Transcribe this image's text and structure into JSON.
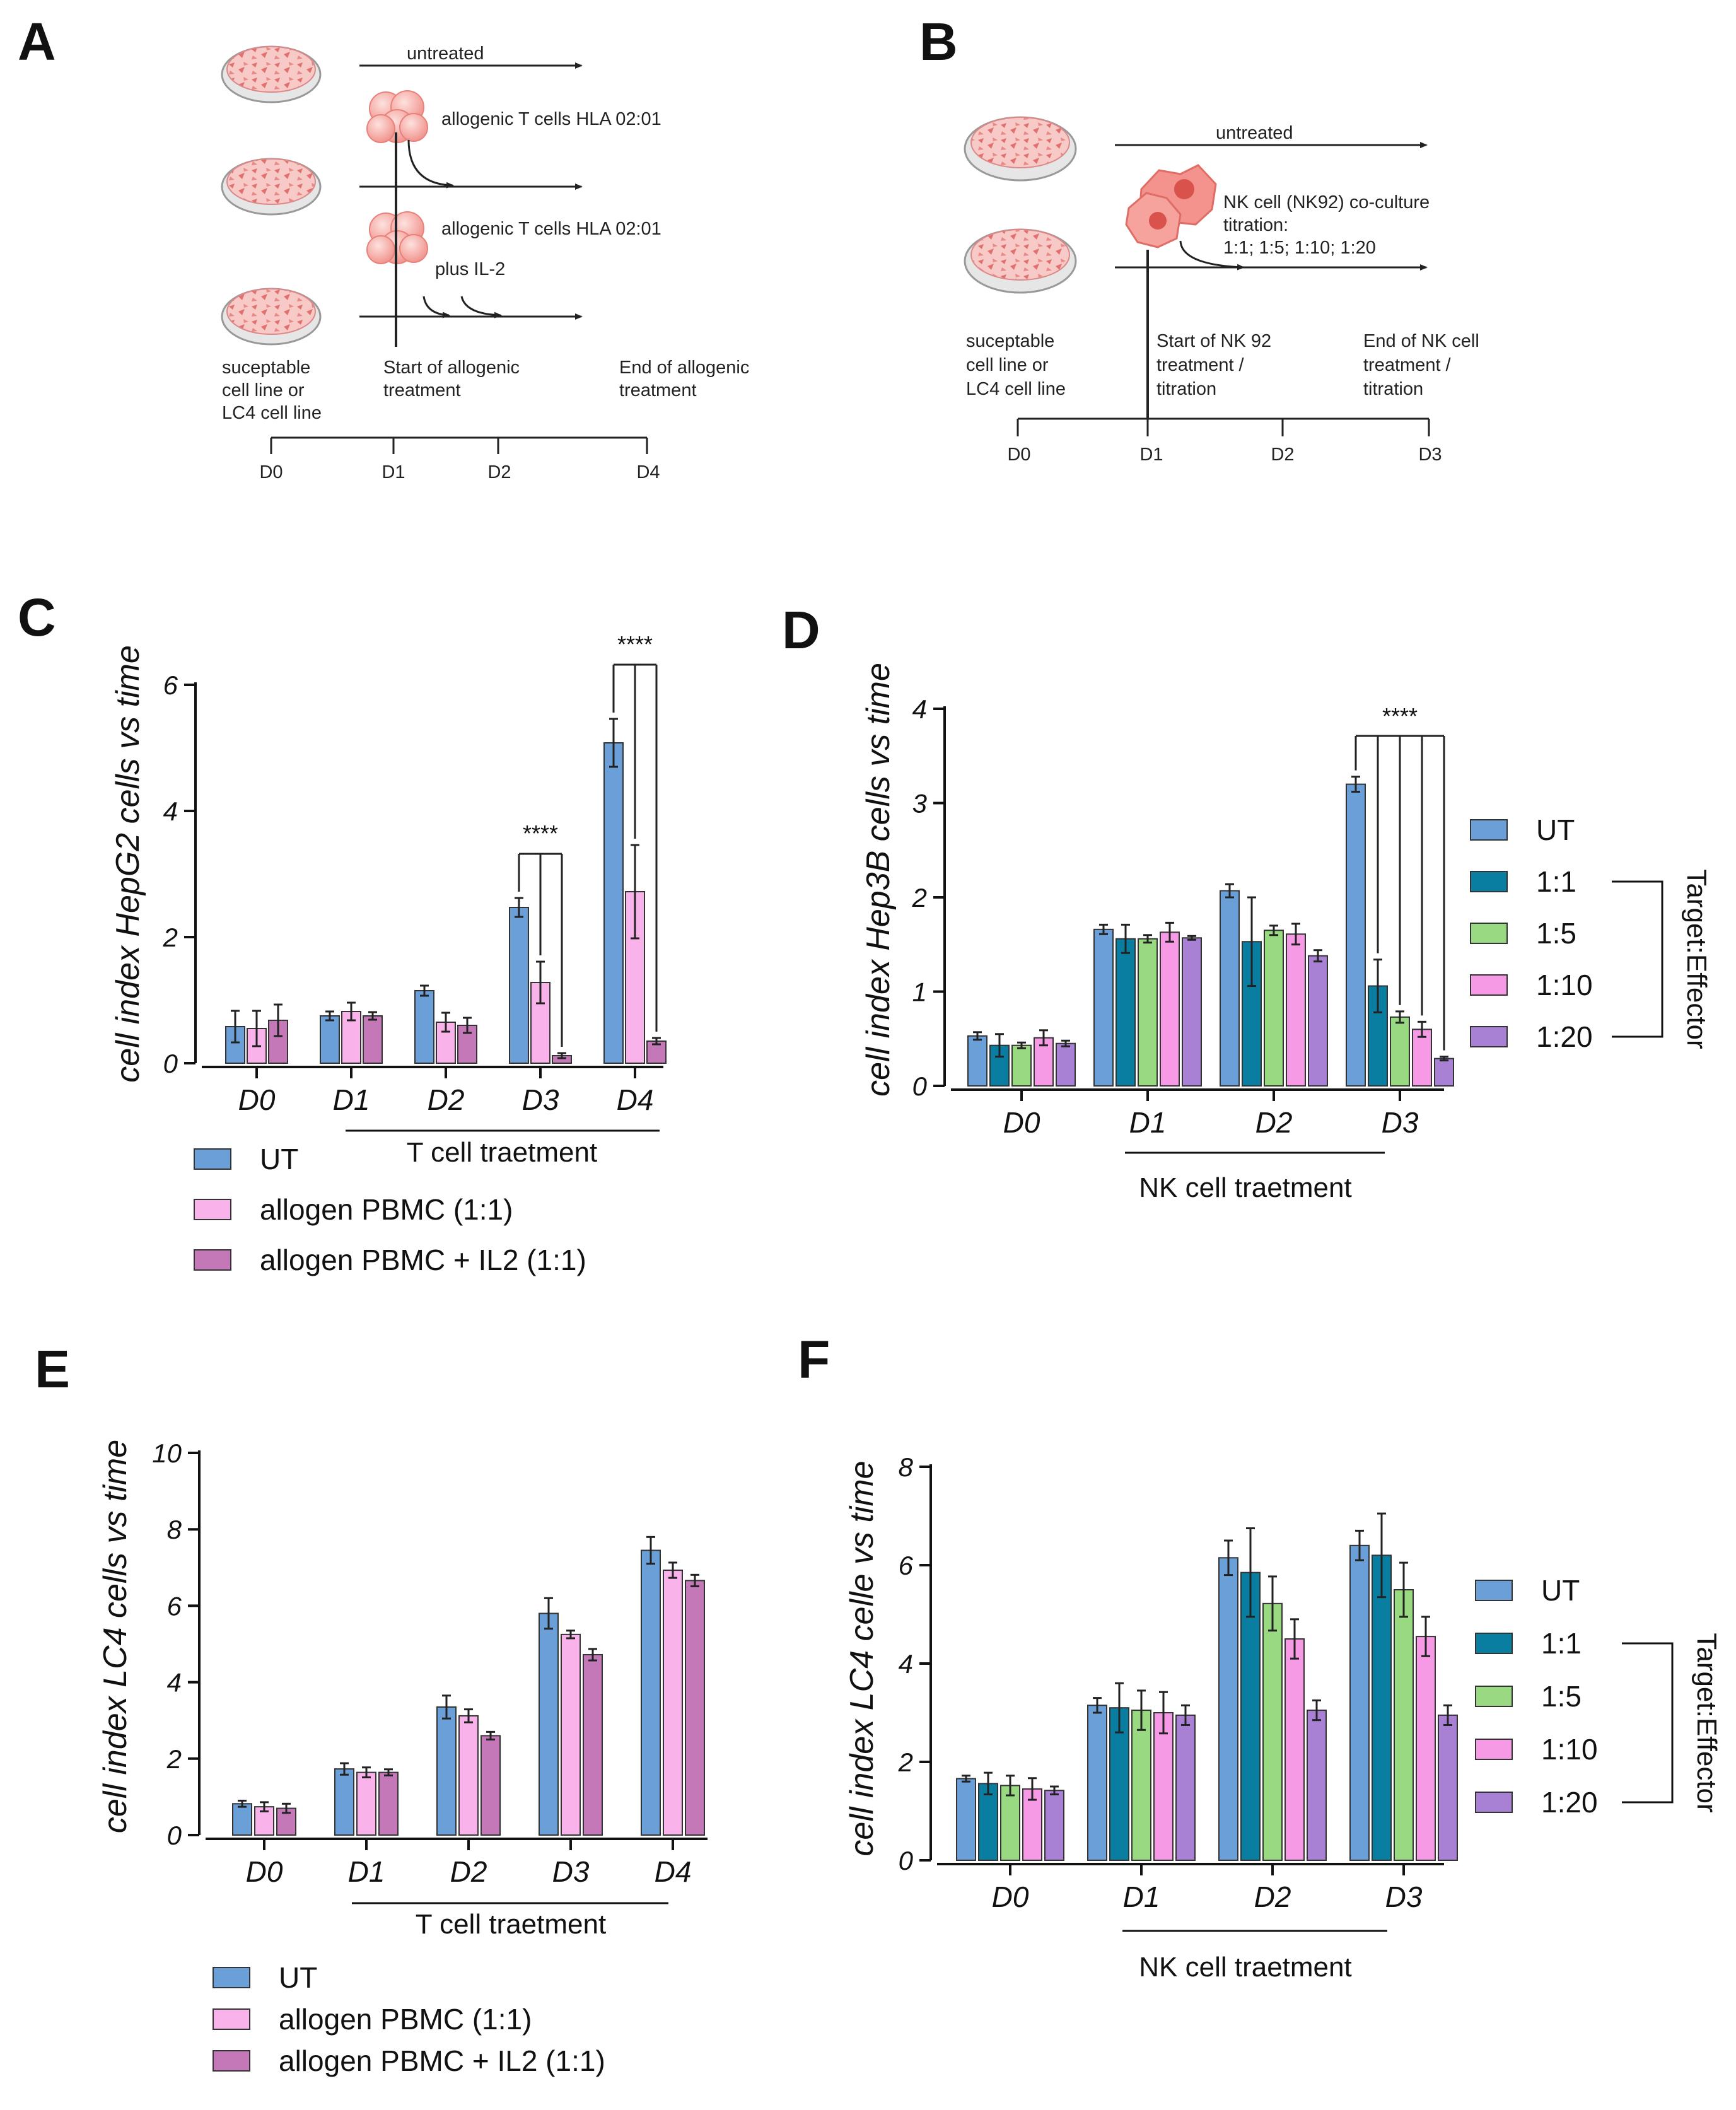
{
  "panels": {
    "A": "A",
    "B": "B",
    "C": "C",
    "D": "D",
    "E": "E",
    "F": "F"
  },
  "schemA": {
    "untreated": "untreated",
    "tcells1": "allogenic T cells HLA 02:01",
    "tcells2": "allogenic T cells HLA 02:01",
    "il2": "plus IL-2",
    "cell_line": [
      "suceptable",
      "cell line or",
      "LC4 cell line"
    ],
    "start": [
      "Start of allogenic",
      "treatment"
    ],
    "end": [
      "End of allogenic",
      "treatment"
    ],
    "days": [
      "D0",
      "D1",
      "D2",
      "D4"
    ]
  },
  "schemB": {
    "untreated": "untreated",
    "nk": [
      "NK cell (NK92) co-culture",
      "titration:",
      "1:1; 1:5; 1:10; 1:20"
    ],
    "cell_line": [
      "suceptable",
      "cell line or",
      "LC4 cell line"
    ],
    "start": [
      "Start of NK 92",
      "treatment /",
      "titration"
    ],
    "end": [
      "End of NK cell",
      "treatment /",
      "titration"
    ],
    "days": [
      "D0",
      "D1",
      "D2",
      "D3"
    ]
  },
  "colors": {
    "UT": "#6a9fd8",
    "1:1": "#0a7ea0",
    "1:5": "#99d982",
    "1:10": "#f79ae6",
    "1:20": "#a880d4",
    "PBMC": "#f9b3ea",
    "PBMC_IL2": "#c478b7"
  },
  "chart_data": [
    {
      "panel": "C",
      "type": "bar",
      "ylabel": "cell index HepG2 cells vs time",
      "ylim": [
        0,
        6
      ],
      "yticks": [
        "0",
        "2",
        "4",
        "6"
      ],
      "categories": [
        "D0",
        "D1",
        "D2",
        "D3",
        "D4"
      ],
      "treatment_label": "T cell traetment",
      "significance": "****",
      "series": [
        {
          "name": "UT",
          "values": [
            0.58,
            0.75,
            1.15,
            2.47,
            5.08
          ],
          "errors": [
            0.25,
            0.07,
            0.08,
            0.15,
            0.38
          ]
        },
        {
          "name": "allogen PBMC (1:1)",
          "values": [
            0.55,
            0.82,
            0.65,
            1.28,
            2.72
          ],
          "errors": [
            0.28,
            0.14,
            0.15,
            0.33,
            0.74
          ]
        },
        {
          "name": "allogen PBMC + IL2 (1:1)",
          "values": [
            0.68,
            0.75,
            0.6,
            0.12,
            0.35
          ],
          "errors": [
            0.25,
            0.06,
            0.12,
            0.04,
            0.05
          ]
        }
      ]
    },
    {
      "panel": "D",
      "type": "bar",
      "ylabel": "cell index Hep3B cells vs time",
      "ylim": [
        0,
        4
      ],
      "yticks": [
        "0",
        "1",
        "2",
        "3",
        "4"
      ],
      "categories": [
        "D0",
        "D1",
        "D2",
        "D3"
      ],
      "treatment_label": "NK cell traetment",
      "significance": "****",
      "legend_group": "Target:Effector",
      "series": [
        {
          "name": "UT",
          "values": [
            0.53,
            1.66,
            2.07,
            3.2
          ],
          "errors": [
            0.04,
            0.05,
            0.07,
            0.08
          ]
        },
        {
          "name": "1:1",
          "values": [
            0.43,
            1.56,
            1.53,
            1.06
          ],
          "errors": [
            0.12,
            0.15,
            0.47,
            0.28
          ]
        },
        {
          "name": "1:5",
          "values": [
            0.43,
            1.56,
            1.65,
            0.73
          ],
          "errors": [
            0.03,
            0.04,
            0.05,
            0.06
          ]
        },
        {
          "name": "1:10",
          "values": [
            0.51,
            1.63,
            1.61,
            0.6
          ],
          "errors": [
            0.08,
            0.1,
            0.11,
            0.08
          ]
        },
        {
          "name": "1:20",
          "values": [
            0.45,
            1.57,
            1.38,
            0.29
          ],
          "errors": [
            0.03,
            0.02,
            0.06,
            0.02
          ]
        }
      ]
    },
    {
      "panel": "E",
      "type": "bar",
      "ylabel": "cell index LC4 cells vs time",
      "ylim": [
        0,
        10
      ],
      "yticks": [
        "0",
        "2",
        "4",
        "6",
        "8",
        "10"
      ],
      "categories": [
        "D0",
        "D1",
        "D2",
        "D3",
        "D4"
      ],
      "treatment_label": "T cell traetment",
      "series": [
        {
          "name": "UT",
          "values": [
            0.82,
            1.73,
            3.35,
            5.8,
            7.45
          ],
          "errors": [
            0.08,
            0.15,
            0.3,
            0.4,
            0.35
          ]
        },
        {
          "name": "allogen PBMC (1:1)",
          "values": [
            0.74,
            1.64,
            3.12,
            5.25,
            6.93
          ],
          "errors": [
            0.12,
            0.13,
            0.17,
            0.1,
            0.2
          ]
        },
        {
          "name": "allogen PBMC + IL2 (1:1)",
          "values": [
            0.7,
            1.64,
            2.6,
            4.72,
            6.66
          ],
          "errors": [
            0.12,
            0.08,
            0.1,
            0.15,
            0.15
          ]
        }
      ]
    },
    {
      "panel": "F",
      "type": "bar",
      "ylabel": "cell index LC4 celle vs time",
      "ylim": [
        0,
        8
      ],
      "yticks": [
        "0",
        "2",
        "4",
        "6",
        "8"
      ],
      "categories": [
        "D0",
        "D1",
        "D2",
        "D3"
      ],
      "treatment_label": "NK cell traetment",
      "legend_group": "Target:Effector",
      "series": [
        {
          "name": "UT",
          "values": [
            1.66,
            3.15,
            6.15,
            6.4
          ],
          "errors": [
            0.06,
            0.15,
            0.35,
            0.3
          ]
        },
        {
          "name": "1:1",
          "values": [
            1.56,
            3.1,
            5.85,
            6.2
          ],
          "errors": [
            0.22,
            0.5,
            0.9,
            0.85
          ]
        },
        {
          "name": "1:5",
          "values": [
            1.52,
            3.05,
            5.22,
            5.5
          ],
          "errors": [
            0.2,
            0.4,
            0.55,
            0.55
          ]
        },
        {
          "name": "1:10",
          "values": [
            1.45,
            3.0,
            4.5,
            4.55
          ],
          "errors": [
            0.22,
            0.42,
            0.4,
            0.4
          ]
        },
        {
          "name": "1:20",
          "values": [
            1.42,
            2.95,
            3.05,
            2.95
          ],
          "errors": [
            0.08,
            0.2,
            0.2,
            0.2
          ]
        }
      ]
    }
  ]
}
